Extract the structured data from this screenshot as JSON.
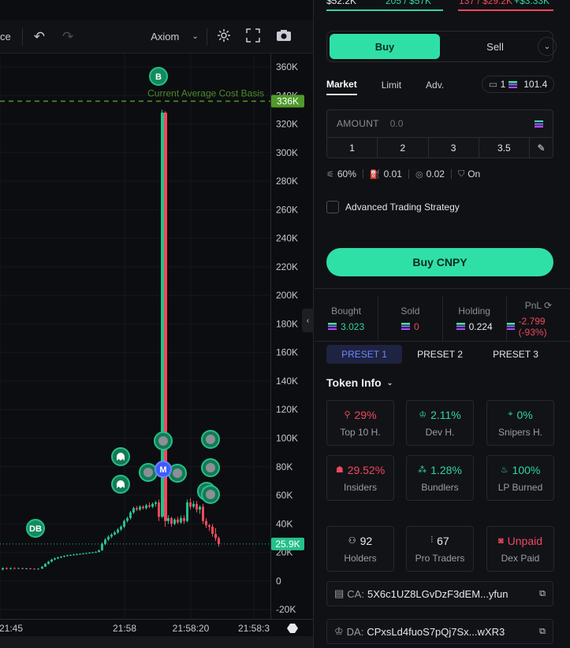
{
  "header": {
    "bal_left": "$52.2K",
    "bal_mid1": "205 / $57K",
    "bal_mid2": "137 / $29.2K",
    "bal_right": "+$3.33K"
  },
  "toolbar": {
    "partial_label": "ce",
    "source_label": "Axiom"
  },
  "chart": {
    "price_ticks": [
      "360K",
      "340K",
      "320K",
      "300K",
      "280K",
      "260K",
      "240K",
      "220K",
      "200K",
      "180K",
      "160K",
      "140K",
      "120K",
      "100K",
      "80K",
      "60K",
      "40K",
      "20K",
      "0",
      "-20K"
    ],
    "time_ticks": [
      "21:45",
      "21:58",
      "21:58:20",
      "21:58:3"
    ],
    "avg_cost_label": "Current Average Cost Basis",
    "avg_cost_tag": "336K",
    "last_price_tag": "25.9K",
    "marker_b": "B",
    "marker_db": "DB",
    "marker_m": "M",
    "colors": {
      "up": "#25c08a",
      "down": "#f0485e",
      "avg_line": "#4f9a2a"
    }
  },
  "trade": {
    "buy_label": "Buy",
    "sell_label": "Sell",
    "order_tabs": [
      "Market",
      "Limit",
      "Adv."
    ],
    "wallet_count": "1",
    "wallet_balance": "101.4",
    "amount_label": "AMOUNT",
    "amount_placeholder": "0.0",
    "presets": [
      "1",
      "2",
      "3",
      "3.5"
    ],
    "slippage": "60%",
    "priority": "0.01",
    "bribe": "0.02",
    "mev": "On",
    "ats_label": "Advanced Trading Strategy",
    "main_button": "Buy CNPY",
    "colors": {
      "accent": "#2fe0a6",
      "red": "#f0485e",
      "preset_active": "#6e86ff"
    }
  },
  "position": {
    "bought_label": "Bought",
    "bought": "3.023",
    "sold_label": "Sold",
    "sold": "0",
    "holding_label": "Holding",
    "holding": "0.224",
    "pnl_label": "PnL",
    "pnl": "-2.799 (-93%)"
  },
  "preset_tabs": [
    "PRESET 1",
    "PRESET 2",
    "PRESET 3"
  ],
  "token_info": {
    "title": "Token Info",
    "cards": [
      {
        "value": "29%",
        "label": "Top 10 H.",
        "icon": "user-icon",
        "tone": "red"
      },
      {
        "value": "2.11%",
        "label": "Dev H.",
        "icon": "chef-hat-icon",
        "tone": "green"
      },
      {
        "value": "0%",
        "label": "Snipers H.",
        "icon": "crosshair-icon",
        "tone": "green"
      },
      {
        "value": "29.52%",
        "label": "Insiders",
        "icon": "ghost-icon",
        "tone": "red"
      },
      {
        "value": "1.28%",
        "label": "Bundlers",
        "icon": "boxes-icon",
        "tone": "green"
      },
      {
        "value": "100%",
        "label": "LP Burned",
        "icon": "flame-icon",
        "tone": "green"
      },
      {
        "value": "92",
        "label": "Holders",
        "icon": "users-icon",
        "tone": "white"
      },
      {
        "value": "67",
        "label": "Pro Traders",
        "icon": "candles-icon",
        "tone": "white"
      },
      {
        "value": "Unpaid",
        "label": "Dex Paid",
        "icon": "dex-icon",
        "tone": "red"
      }
    ],
    "ca_prefix": "CA:",
    "ca": "5X6c1UZ8LGvDzF3dEM...yfun",
    "da_prefix": "DA:",
    "da": "CPxsLd4fuoS7pQj7Sx...wXR3"
  }
}
